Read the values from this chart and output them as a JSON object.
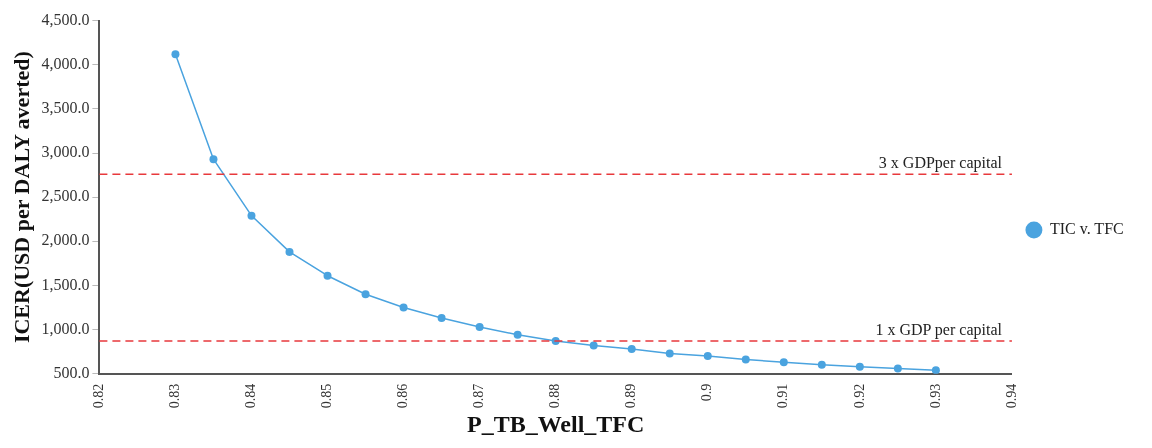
{
  "chart_data": {
    "type": "line",
    "xlabel": "P_TB_Well_TFC",
    "ylabel": "ICER(USD per DALY averted)",
    "x": [
      0.83,
      0.835,
      0.84,
      0.845,
      0.85,
      0.855,
      0.86,
      0.865,
      0.87,
      0.875,
      0.88,
      0.885,
      0.89,
      0.895,
      0.9,
      0.905,
      0.91,
      0.915,
      0.92,
      0.925,
      0.93
    ],
    "series": [
      {
        "name": "TIC v. TFC",
        "color": "#4aa3df",
        "values": [
          4120,
          2930,
          2290,
          1880,
          1610,
          1400,
          1250,
          1130,
          1030,
          940,
          870,
          820,
          780,
          730,
          700,
          660,
          630,
          600,
          580,
          560,
          540
        ]
      }
    ],
    "xlim": [
      0.82,
      0.94
    ],
    "xticks": [
      0.82,
      0.83,
      0.84,
      0.85,
      0.86,
      0.87,
      0.88,
      0.89,
      0.9,
      0.91,
      0.92,
      0.93,
      0.94
    ],
    "ylim": [
      500,
      4500
    ],
    "yticks": [
      {
        "value": 500,
        "label": "500.0"
      },
      {
        "value": 1000,
        "label": "1,000.0"
      },
      {
        "value": 1500,
        "label": "1,500.0"
      },
      {
        "value": 2000,
        "label": "2,000.0"
      },
      {
        "value": 2500,
        "label": "2,500.0"
      },
      {
        "value": 3000,
        "label": "3,000.0"
      },
      {
        "value": 3500,
        "label": "3,500.0"
      },
      {
        "value": 4000,
        "label": "4,000.0"
      },
      {
        "value": 4500,
        "label": "4,500.0"
      }
    ],
    "ref_lines": [
      {
        "axis": "y",
        "value": 2760,
        "label": "3 x GDPper capital",
        "color": "#e8393c",
        "line_style": "dashed"
      },
      {
        "axis": "y",
        "value": 870,
        "label": "1 x GDP per capital",
        "color": "#e8393c",
        "line_style": "dashed"
      }
    ],
    "grid": false,
    "legend": "right",
    "marker": "circle",
    "line_style": "solid"
  }
}
